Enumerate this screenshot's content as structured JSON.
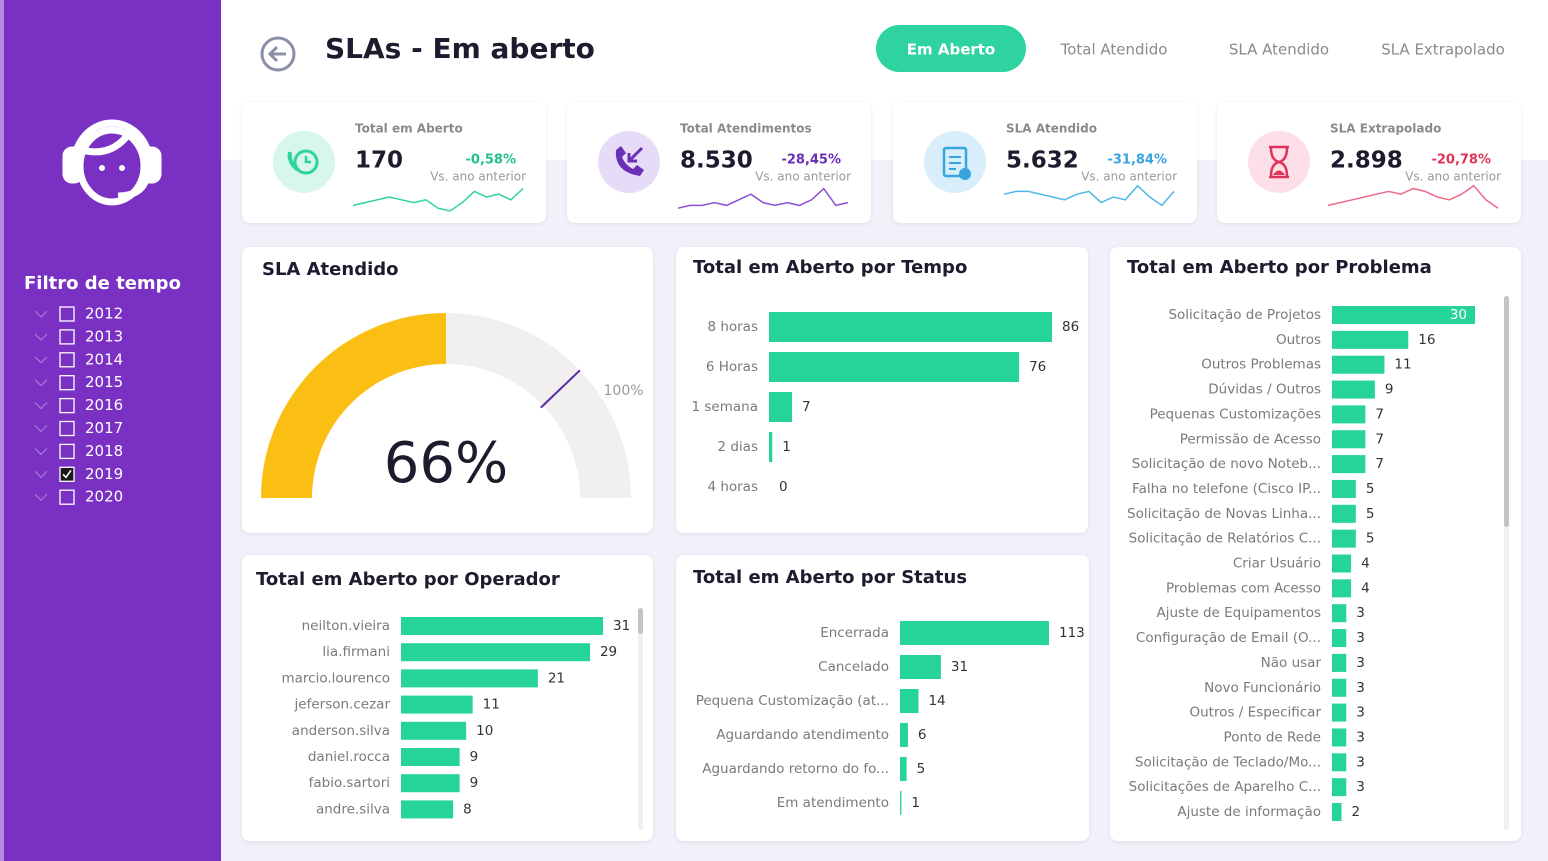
{
  "header": {
    "title": "SLAs - Em aberto",
    "tabs": [
      "Em Aberto",
      "Total Atendido",
      "SLA Atendido",
      "SLA Extrapolado"
    ],
    "active_tab": 0
  },
  "filter": {
    "title": "Filtro de tempo",
    "options": [
      {
        "label": "2012",
        "checked": false
      },
      {
        "label": "2013",
        "checked": false
      },
      {
        "label": "2014",
        "checked": false
      },
      {
        "label": "2015",
        "checked": false
      },
      {
        "label": "2016",
        "checked": false
      },
      {
        "label": "2017",
        "checked": false
      },
      {
        "label": "2018",
        "checked": false
      },
      {
        "label": "2019",
        "checked": true
      },
      {
        "label": "2020",
        "checked": false
      }
    ]
  },
  "kpis": [
    {
      "title": "Total em Aberto",
      "value": 170,
      "change": -0.58,
      "change_label": "-0,58%",
      "subtitle": "Vs. ano anterior",
      "color": "#2ed39e",
      "trend": [
        2,
        3,
        4,
        5,
        4,
        3,
        4,
        1,
        0,
        3,
        7,
        5,
        6,
        4,
        8
      ]
    },
    {
      "title": "Total Atendimentos",
      "value": 8530,
      "value_label": "8.530",
      "change": -28.45,
      "change_label": "-28,45%",
      "subtitle": "Vs. ano anterior",
      "color": "#8a4fd6",
      "trend": [
        1,
        2,
        2,
        3,
        2,
        4,
        6,
        3,
        2,
        3,
        2,
        4,
        8,
        2,
        3
      ]
    },
    {
      "title": "SLA Atendido",
      "value": 5632,
      "value_label": "5.632",
      "change": -31.84,
      "change_label": "-31,84%",
      "subtitle": "Vs. ano anterior",
      "color": "#4db8e8",
      "trend": [
        6,
        7,
        7,
        6,
        5,
        4,
        6,
        7,
        3,
        5,
        4,
        9,
        5,
        2,
        7
      ]
    },
    {
      "title": "SLA Extrapolado",
      "value": 2898,
      "value_label": "2.898",
      "change": -20.78,
      "change_label": "-20,78%",
      "subtitle": "Vs. ano anterior",
      "color": "#f06a8a",
      "trend": [
        2,
        3,
        4,
        5,
        6,
        7,
        6,
        8,
        7,
        5,
        4,
        6,
        9,
        4,
        1
      ]
    }
  ],
  "chart_data": [
    {
      "type": "gauge",
      "title": "SLA Atendido",
      "value": 66,
      "value_label": "66%",
      "lim": [
        0,
        132
      ],
      "ticks": [
        {
          "value": 100,
          "label": "100%"
        }
      ],
      "color": "#fbbf14"
    },
    {
      "type": "hbar",
      "title": "Total em Aberto por Tempo",
      "categories": [
        "8 horas",
        "6 Horas",
        "1 semana",
        "2 dias",
        "4 horas"
      ],
      "values": [
        86,
        76,
        7,
        1,
        0
      ],
      "xlim": [
        0,
        86
      ],
      "color": "#26d39a"
    },
    {
      "type": "hbar",
      "title": "Total em Aberto por Problema",
      "categories": [
        "Solicitação de Projetos",
        "Outros",
        "Outros Problemas",
        "Dúvidas / Outros",
        "Pequenas Customizações",
        "Permissão de Acesso",
        "Solicitação de novo Noteb...",
        "Falha no telefone (Cisco IP...",
        "Solicitação de Novas Linha...",
        "Solicitação de Relatórios C...",
        "Criar Usuário",
        "Problemas com Acesso",
        "Ajuste de Equipamentos",
        "Configuração de Email (O...",
        "Não usar",
        "Novo Funcionário",
        "Outros / Especificar",
        "Ponto de Rede",
        "Solicitação de Teclado/Mo...",
        "Solicitações de Aparelho C...",
        "Ajuste de informação"
      ],
      "values": [
        30,
        16,
        11,
        9,
        7,
        7,
        7,
        5,
        5,
        5,
        4,
        4,
        3,
        3,
        3,
        3,
        3,
        3,
        3,
        3,
        2
      ],
      "xlim": [
        0,
        30
      ],
      "color": "#26d39a"
    },
    {
      "type": "hbar",
      "title": "Total em Aberto por Operador",
      "categories": [
        "neilton.vieira",
        "lia.firmani",
        "marcio.lourenco",
        "jeferson.cezar",
        "anderson.silva",
        "daniel.rocca",
        "fabio.sartori",
        "andre.silva"
      ],
      "values": [
        31,
        29,
        21,
        11,
        10,
        9,
        9,
        8
      ],
      "xlim": [
        0,
        31
      ],
      "color": "#26d39a"
    },
    {
      "type": "hbar",
      "title": "Total em Aberto por Status",
      "categories": [
        "Encerrada",
        "Cancelado",
        "Pequena Customização (at...",
        "Aguardando atendimento",
        "Aguardando retorno do fo...",
        "Em atendimento"
      ],
      "values": [
        113,
        31,
        14,
        6,
        5,
        1
      ],
      "xlim": [
        0,
        113
      ],
      "color": "#26d39a"
    }
  ]
}
